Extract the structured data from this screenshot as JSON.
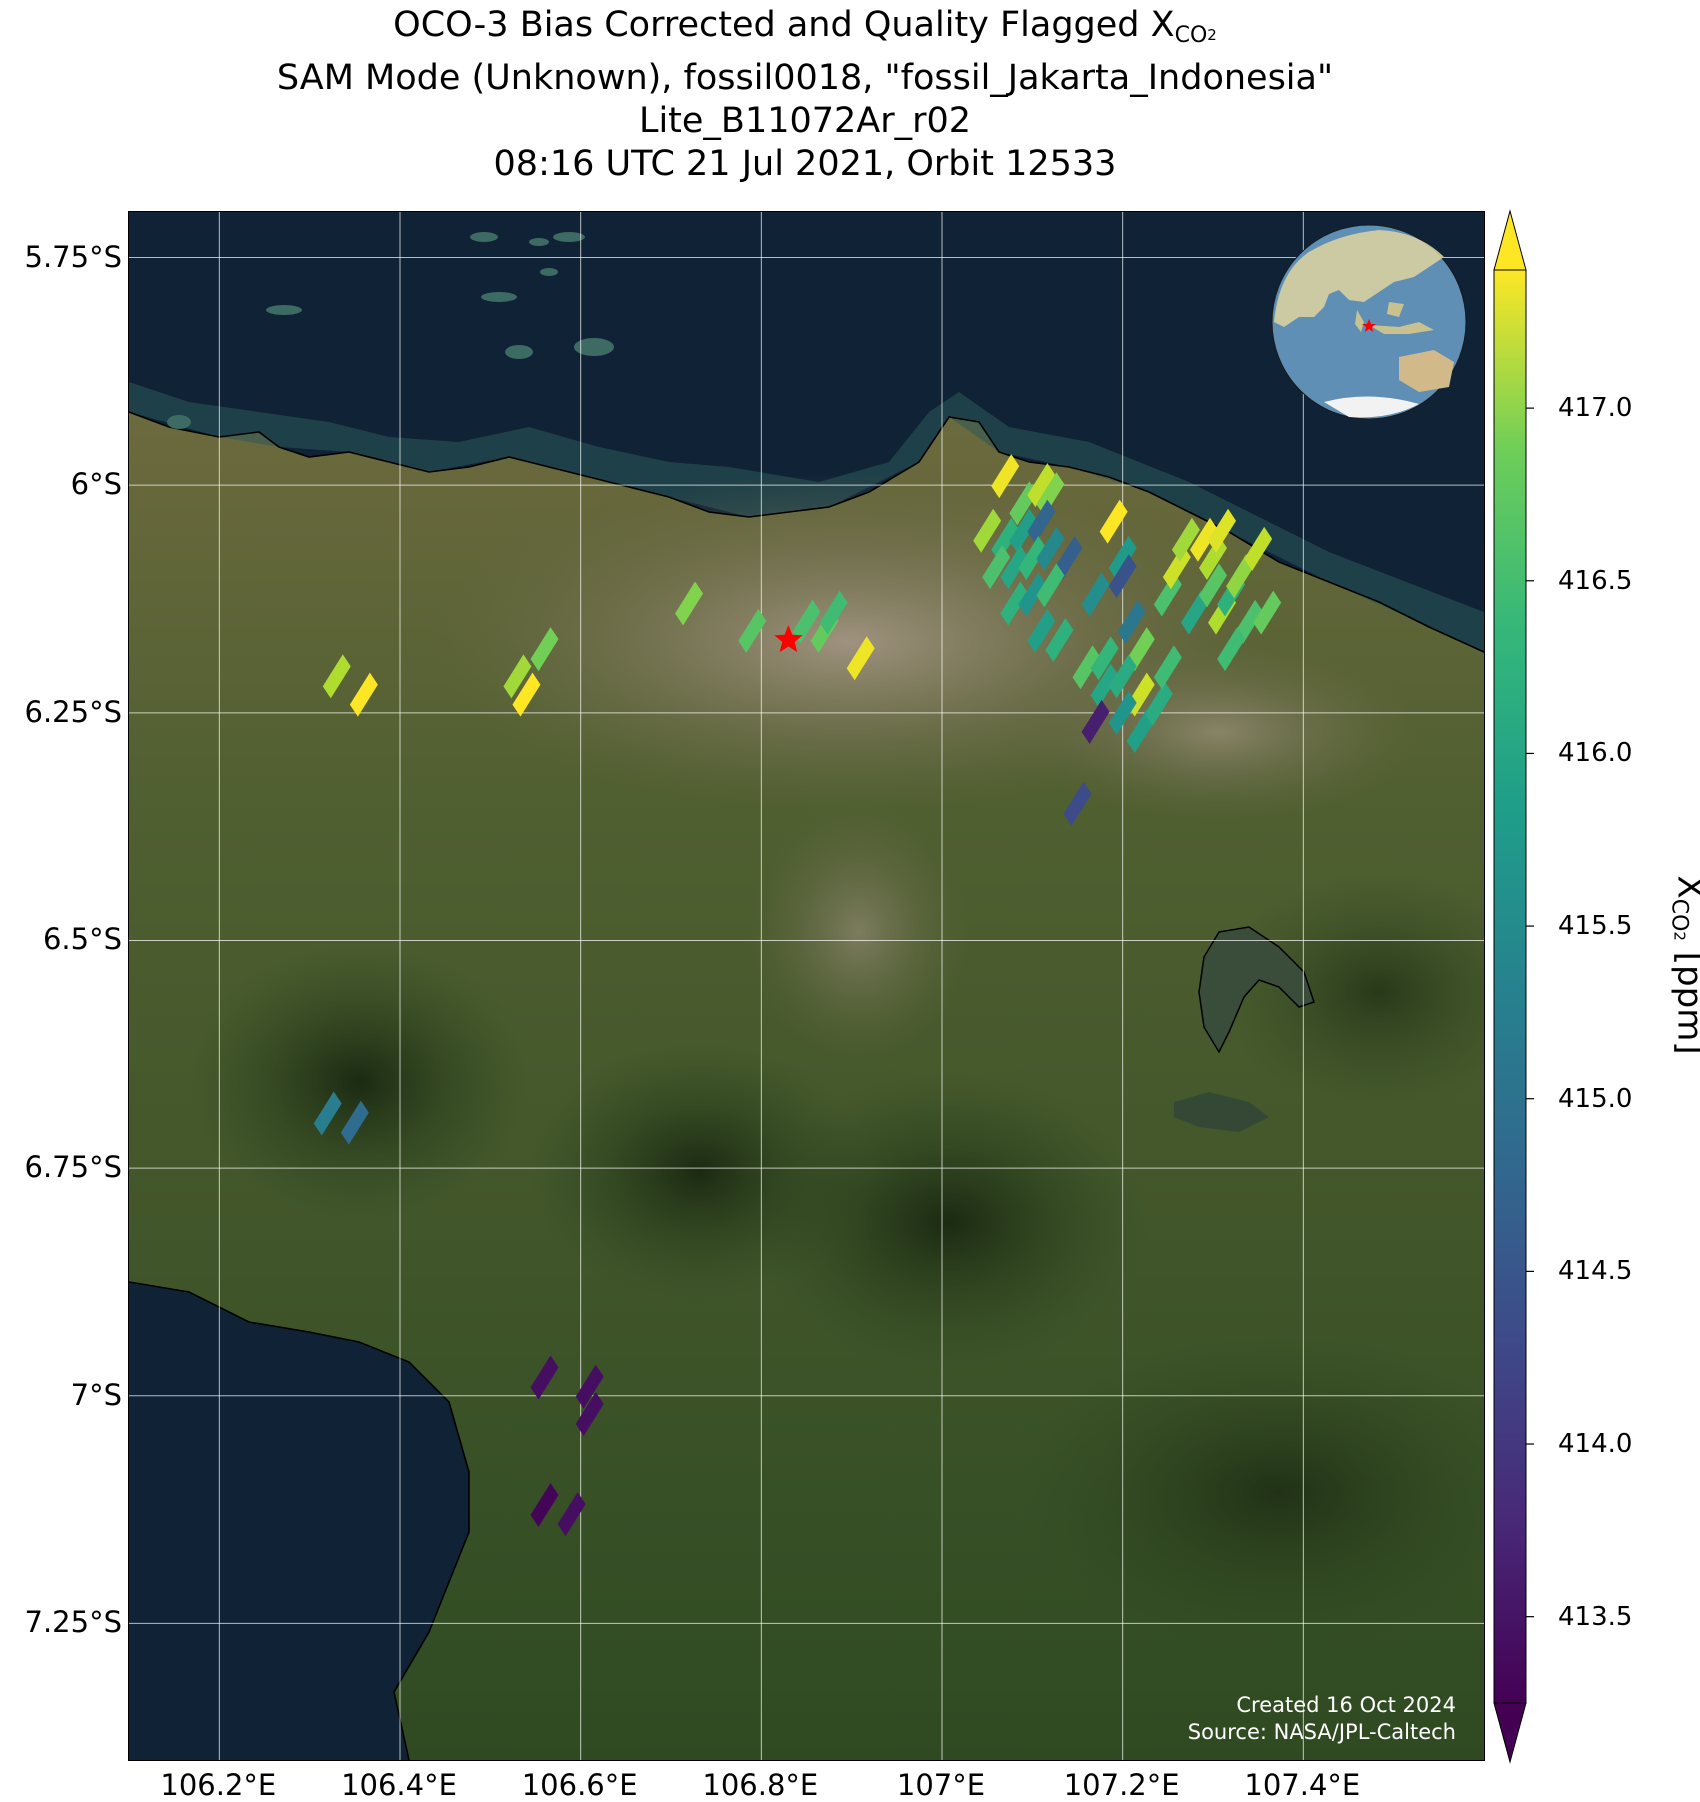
{
  "title": {
    "line1_prefix": "OCO-3 Bias Corrected and Quality Flagged X",
    "line1_sub": "CO",
    "line1_sub2": "2",
    "line2": "SAM Mode (Unknown), fossil0018, \"fossil_Jakarta_Indonesia\"",
    "line3": "Lite_B11072Ar_r02",
    "line4": "08:16 UTC 21 Jul 2021, Orbit 12533"
  },
  "credits": {
    "created": "Created 16 Oct 2024",
    "source": "Source: NASA/JPL-Caltech"
  },
  "map": {
    "lon_range": [
      106.1,
      107.6
    ],
    "lat_range": [
      -7.4,
      -5.7
    ],
    "lat_ticks": [
      {
        "value": -5.75,
        "label": "5.75°S"
      },
      {
        "value": -6.0,
        "label": "6°S"
      },
      {
        "value": -6.25,
        "label": "6.25°S"
      },
      {
        "value": -6.5,
        "label": "6.5°S"
      },
      {
        "value": -6.75,
        "label": "6.75°S"
      },
      {
        "value": -7.0,
        "label": "7°S"
      },
      {
        "value": -7.25,
        "label": "7.25°S"
      }
    ],
    "lon_ticks": [
      {
        "value": 106.2,
        "label": "106.2°E"
      },
      {
        "value": 106.4,
        "label": "106.4°E"
      },
      {
        "value": 106.6,
        "label": "106.6°E"
      },
      {
        "value": 106.8,
        "label": "106.8°E"
      },
      {
        "value": 107.0,
        "label": "107°E"
      },
      {
        "value": 107.2,
        "label": "107.2°E"
      },
      {
        "value": 107.4,
        "label": "107.4°E"
      }
    ],
    "target": {
      "lon": 106.83,
      "lat": -6.17,
      "name": "fossil_Jakarta_Indonesia",
      "color": "#ff0000"
    },
    "colors": {
      "sea": "#0f2236",
      "land": "#3d5a2a",
      "urban": "#9a8a78",
      "grid": "#ffffff"
    },
    "soundings": [
      {
        "lon": 107.07,
        "lat": -5.99,
        "xco2": 417.3
      },
      {
        "lon": 107.09,
        "lat": -6.02,
        "xco2": 416.4
      },
      {
        "lon": 107.11,
        "lat": -6.0,
        "xco2": 417.0
      },
      {
        "lon": 107.12,
        "lat": -6.01,
        "xco2": 416.6
      },
      {
        "lon": 107.05,
        "lat": -6.05,
        "xco2": 416.8
      },
      {
        "lon": 107.07,
        "lat": -6.06,
        "xco2": 415.9
      },
      {
        "lon": 107.09,
        "lat": -6.05,
        "xco2": 415.6
      },
      {
        "lon": 107.11,
        "lat": -6.04,
        "xco2": 414.6
      },
      {
        "lon": 107.06,
        "lat": -6.09,
        "xco2": 416.2
      },
      {
        "lon": 107.08,
        "lat": -6.09,
        "xco2": 415.7
      },
      {
        "lon": 107.1,
        "lat": -6.08,
        "xco2": 416.0
      },
      {
        "lon": 107.12,
        "lat": -6.07,
        "xco2": 415.2
      },
      {
        "lon": 107.14,
        "lat": -6.08,
        "xco2": 414.5
      },
      {
        "lon": 107.08,
        "lat": -6.13,
        "xco2": 415.9
      },
      {
        "lon": 107.1,
        "lat": -6.12,
        "xco2": 415.4
      },
      {
        "lon": 107.12,
        "lat": -6.11,
        "xco2": 416.1
      },
      {
        "lon": 107.11,
        "lat": -6.16,
        "xco2": 415.6
      },
      {
        "lon": 107.13,
        "lat": -6.17,
        "xco2": 415.9
      },
      {
        "lon": 107.16,
        "lat": -6.2,
        "xco2": 416.3
      },
      {
        "lon": 107.18,
        "lat": -6.22,
        "xco2": 415.7
      },
      {
        "lon": 107.18,
        "lat": -6.19,
        "xco2": 416.0
      },
      {
        "lon": 107.17,
        "lat": -6.12,
        "xco2": 415.3
      },
      {
        "lon": 107.2,
        "lat": -6.08,
        "xco2": 415.5
      },
      {
        "lon": 107.2,
        "lat": -6.1,
        "xco2": 414.3
      },
      {
        "lon": 107.21,
        "lat": -6.15,
        "xco2": 414.9
      },
      {
        "lon": 107.19,
        "lat": -6.04,
        "xco2": 417.4
      },
      {
        "lon": 107.22,
        "lat": -6.18,
        "xco2": 416.5
      },
      {
        "lon": 107.2,
        "lat": -6.21,
        "xco2": 415.8
      },
      {
        "lon": 107.22,
        "lat": -6.23,
        "xco2": 417.1
      },
      {
        "lon": 107.2,
        "lat": -6.25,
        "xco2": 415.4
      },
      {
        "lon": 107.22,
        "lat": -6.27,
        "xco2": 415.6
      },
      {
        "lon": 107.24,
        "lat": -6.24,
        "xco2": 415.8
      },
      {
        "lon": 107.25,
        "lat": -6.2,
        "xco2": 416.1
      },
      {
        "lon": 107.25,
        "lat": -6.12,
        "xco2": 416.2
      },
      {
        "lon": 107.26,
        "lat": -6.09,
        "xco2": 417.1
      },
      {
        "lon": 107.27,
        "lat": -6.06,
        "xco2": 416.8
      },
      {
        "lon": 107.29,
        "lat": -6.06,
        "xco2": 417.3
      },
      {
        "lon": 107.3,
        "lat": -6.08,
        "xco2": 416.9
      },
      {
        "lon": 107.31,
        "lat": -6.05,
        "xco2": 417.2
      },
      {
        "lon": 107.28,
        "lat": -6.14,
        "xco2": 415.7
      },
      {
        "lon": 107.3,
        "lat": -6.11,
        "xco2": 416.3
      },
      {
        "lon": 107.31,
        "lat": -6.14,
        "xco2": 416.9
      },
      {
        "lon": 107.32,
        "lat": -6.12,
        "xco2": 415.9
      },
      {
        "lon": 107.33,
        "lat": -6.1,
        "xco2": 416.7
      },
      {
        "lon": 107.34,
        "lat": -6.15,
        "xco2": 416.2
      },
      {
        "lon": 107.35,
        "lat": -6.07,
        "xco2": 417.0
      },
      {
        "lon": 107.36,
        "lat": -6.14,
        "xco2": 416.4
      },
      {
        "lon": 107.32,
        "lat": -6.18,
        "xco2": 416.1
      },
      {
        "lon": 107.17,
        "lat": -6.26,
        "xco2": 413.6
      },
      {
        "lon": 107.15,
        "lat": -6.35,
        "xco2": 414.2
      },
      {
        "lon": 106.72,
        "lat": -6.13,
        "xco2": 416.6
      },
      {
        "lon": 106.79,
        "lat": -6.16,
        "xco2": 416.3
      },
      {
        "lon": 106.85,
        "lat": -6.15,
        "xco2": 416.2
      },
      {
        "lon": 106.87,
        "lat": -6.16,
        "xco2": 416.4
      },
      {
        "lon": 106.88,
        "lat": -6.14,
        "xco2": 416.1
      },
      {
        "lon": 106.91,
        "lat": -6.19,
        "xco2": 417.3
      },
      {
        "lon": 106.56,
        "lat": -6.18,
        "xco2": 416.5
      },
      {
        "lon": 106.53,
        "lat": -6.21,
        "xco2": 416.8
      },
      {
        "lon": 106.54,
        "lat": -6.23,
        "xco2": 417.4
      },
      {
        "lon": 106.33,
        "lat": -6.21,
        "xco2": 416.9
      },
      {
        "lon": 106.36,
        "lat": -6.23,
        "xco2": 417.4
      },
      {
        "lon": 106.32,
        "lat": -6.69,
        "xco2": 415.0
      },
      {
        "lon": 106.35,
        "lat": -6.7,
        "xco2": 414.7
      },
      {
        "lon": 106.56,
        "lat": -6.98,
        "xco2": 413.4
      },
      {
        "lon": 106.61,
        "lat": -6.99,
        "xco2": 413.4
      },
      {
        "lon": 106.61,
        "lat": -7.02,
        "xco2": 413.4
      },
      {
        "lon": 106.56,
        "lat": -7.12,
        "xco2": 413.3
      },
      {
        "lon": 106.59,
        "lat": -7.13,
        "xco2": 413.4
      }
    ]
  },
  "colorbar": {
    "colormap": "viridis",
    "vmin": 413.25,
    "vmax": 417.4,
    "ticks": [
      {
        "value": 413.5,
        "label": "413.5"
      },
      {
        "value": 414.0,
        "label": "414.0"
      },
      {
        "value": 414.5,
        "label": "414.5"
      },
      {
        "value": 415.0,
        "label": "415.0"
      },
      {
        "value": 415.5,
        "label": "415.5"
      },
      {
        "value": 416.0,
        "label": "416.0"
      },
      {
        "value": 416.5,
        "label": "416.5"
      },
      {
        "value": 417.0,
        "label": "417.0"
      }
    ],
    "label_prefix": "X",
    "label_sub": "CO",
    "label_sub2": "2",
    "label_suffix": " [ppm]"
  }
}
